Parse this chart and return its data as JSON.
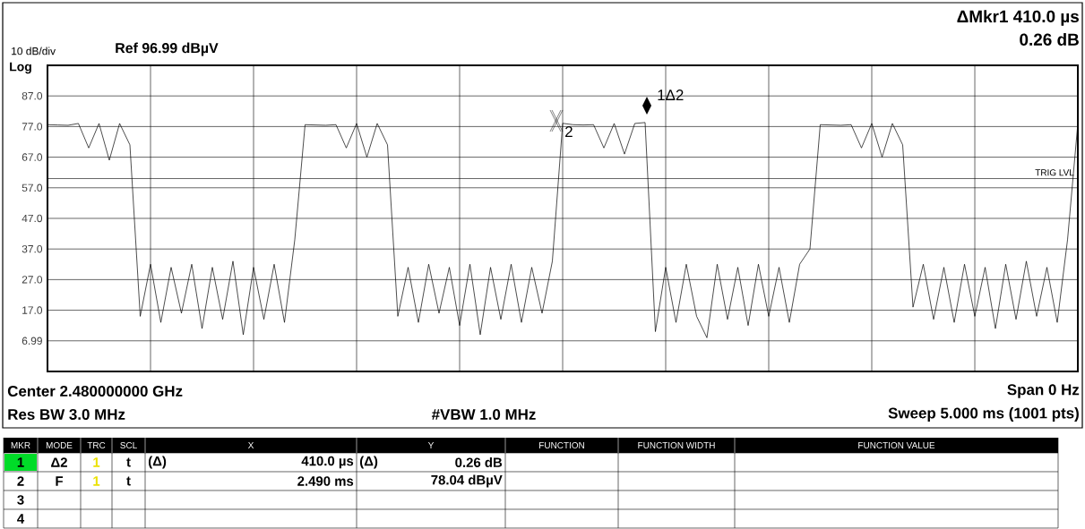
{
  "chart_data": {
    "type": "line",
    "annotations": [
      "10 dB/div",
      "Log",
      "Ref 96.99 dBµV",
      "ΔMkr1 410.0 µs",
      "0.26 dB",
      "Center 2.480000000 GHz",
      "Span 0 Hz",
      "Res BW 3.0 MHz",
      "#VBW 1.0 MHz",
      "Sweep 5.000 ms (1001 pts)",
      "MKR",
      "MODE",
      "TRC",
      "SCL",
      "X",
      "Y",
      "FUNCTION",
      "FUNCTION WIDTH",
      "FUNCTION VALUE",
      "1",
      "Δ2",
      "1",
      "t",
      "(Δ)",
      "410.0 µs",
      "(Δ)",
      "0.26 dB",
      "2",
      "F",
      "1",
      "t",
      "2.490 ms",
      "78.04 dBµV",
      "3",
      "4",
      "1Δ2",
      "2"
    ],
    "categories": [
      null,
      null,
      null,
      null,
      null,
      null,
      null,
      null,
      null,
      null,
      null,
      null,
      null,
      null,
      null,
      null,
      null,
      null,
      null,
      null,
      null,
      null,
      null,
      null,
      null,
      null,
      null,
      null,
      null,
      null,
      null,
      null,
      null,
      null,
      null,
      null,
      null,
      null,
      null,
      null,
      null,
      null,
      null,
      null,
      null,
      null,
      null,
      null,
      null,
      null,
      null,
      null,
      null,
      null,
      null,
      null,
      null,
      null,
      null,
      null,
      null,
      null,
      null,
      null,
      null,
      null,
      null,
      null,
      null,
      null,
      null,
      null,
      null,
      null,
      null,
      null,
      null,
      null,
      null,
      null,
      null,
      null,
      null,
      null,
      null,
      null,
      null,
      null,
      null,
      null,
      null,
      null,
      null,
      null,
      null,
      null,
      null,
      null,
      null,
      null,
      null
    ],
    "ylim": [
      -3.01,
      96.99
    ],
    "yticks": [
      {
        "value": 86.99,
        "label": "87.0"
      },
      {
        "value": 76.99,
        "label": "77.0"
      },
      {
        "value": 66.99,
        "label": "67.0"
      },
      {
        "value": 56.99,
        "label": "57.0"
      },
      {
        "value": 46.99,
        "label": "47.0"
      },
      {
        "value": 36.99,
        "label": "37.0"
      },
      {
        "value": 26.99,
        "label": "27.0"
      },
      {
        "value": 16.99,
        "label": "17.0"
      },
      {
        "value": 6.99,
        "label": "6.99"
      }
    ],
    "tick_labels": "y",
    "grid": true,
    "line_style": "solid",
    "ref_lines": [
      {
        "axis": "y",
        "value": 60,
        "label": "TRIG LVL"
      }
    ],
    "series": [
      {
        "color": "#000000",
        "values": [
          77.6,
          77.5,
          77.4,
          78,
          70,
          78,
          66,
          78,
          71,
          15,
          32,
          13,
          31,
          16,
          32,
          11,
          31,
          14,
          33,
          9,
          31,
          14,
          32,
          13,
          40,
          77.6,
          77.5,
          77.4,
          77.6,
          70,
          78,
          67,
          78,
          71,
          15,
          31,
          13,
          32,
          16,
          31,
          12,
          32,
          9,
          31,
          14,
          32,
          13,
          31,
          16,
          33,
          78.04,
          77.6,
          77.5,
          77.6,
          70,
          78,
          68,
          78,
          78.3,
          10,
          31,
          13,
          32,
          15,
          8,
          32,
          14,
          31,
          12,
          32,
          15,
          31,
          13,
          32,
          37,
          77.6,
          77.5,
          77.4,
          77.6,
          70,
          78,
          67,
          78,
          71,
          18,
          32,
          14,
          31,
          13,
          32,
          15,
          31,
          11,
          32,
          14,
          33,
          15,
          31,
          13,
          40,
          78
        ]
      }
    ]
  }
}
